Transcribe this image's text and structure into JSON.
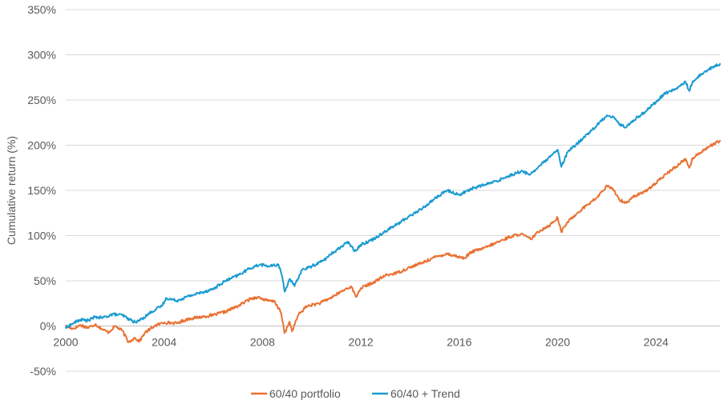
{
  "chart_data": {
    "type": "line",
    "title": "",
    "xlabel": "",
    "ylabel": "Cumulative return (%)",
    "xlim": [
      2000,
      2026.6
    ],
    "ylim": [
      -50,
      350
    ],
    "x_ticks": [
      2000,
      2004,
      2008,
      2012,
      2016,
      2020,
      2024
    ],
    "x_tick_labels": [
      "2000",
      "2004",
      "2008",
      "2012",
      "2016",
      "2020",
      "2024"
    ],
    "y_ticks": [
      -50,
      0,
      50,
      100,
      150,
      200,
      250,
      300,
      350
    ],
    "y_tick_labels": [
      "-50%",
      "0%",
      "50%",
      "100%",
      "150%",
      "200%",
      "250%",
      "300%",
      "350%"
    ],
    "grid": "horizontal",
    "legend_position": "bottom",
    "series": [
      {
        "name": "60/40 portfolio",
        "color": "#E97132",
        "points": [
          [
            2000.0,
            0
          ],
          [
            2000.3,
            -3
          ],
          [
            2000.6,
            1
          ],
          [
            2000.9,
            -2
          ],
          [
            2001.2,
            2
          ],
          [
            2001.5,
            -4
          ],
          [
            2001.75,
            -7
          ],
          [
            2002.0,
            0
          ],
          [
            2002.3,
            -5
          ],
          [
            2002.55,
            -18
          ],
          [
            2002.8,
            -13
          ],
          [
            2003.0,
            -17
          ],
          [
            2003.2,
            -8
          ],
          [
            2003.6,
            0
          ],
          [
            2004.0,
            4
          ],
          [
            2004.5,
            3
          ],
          [
            2005.0,
            8
          ],
          [
            2005.5,
            10
          ],
          [
            2006.0,
            12
          ],
          [
            2006.5,
            16
          ],
          [
            2007.0,
            22
          ],
          [
            2007.5,
            30
          ],
          [
            2007.8,
            32
          ],
          [
            2008.2,
            28
          ],
          [
            2008.5,
            27
          ],
          [
            2008.75,
            15
          ],
          [
            2008.9,
            -8
          ],
          [
            2009.1,
            5
          ],
          [
            2009.2,
            -6
          ],
          [
            2009.45,
            12
          ],
          [
            2009.8,
            22
          ],
          [
            2010.3,
            25
          ],
          [
            2010.7,
            30
          ],
          [
            2011.2,
            38
          ],
          [
            2011.6,
            44
          ],
          [
            2011.8,
            32
          ],
          [
            2012.0,
            42
          ],
          [
            2012.5,
            48
          ],
          [
            2013.0,
            56
          ],
          [
            2013.5,
            59
          ],
          [
            2014.0,
            65
          ],
          [
            2014.5,
            70
          ],
          [
            2015.0,
            76
          ],
          [
            2015.5,
            80
          ],
          [
            2015.9,
            77
          ],
          [
            2016.2,
            75
          ],
          [
            2016.5,
            82
          ],
          [
            2017.0,
            86
          ],
          [
            2017.5,
            92
          ],
          [
            2018.0,
            98
          ],
          [
            2018.5,
            102
          ],
          [
            2018.9,
            96
          ],
          [
            2019.3,
            106
          ],
          [
            2019.7,
            112
          ],
          [
            2020.0,
            120
          ],
          [
            2020.15,
            104
          ],
          [
            2020.4,
            115
          ],
          [
            2020.8,
            125
          ],
          [
            2021.2,
            134
          ],
          [
            2021.6,
            142
          ],
          [
            2022.0,
            155
          ],
          [
            2022.3,
            150
          ],
          [
            2022.5,
            140
          ],
          [
            2022.8,
            136
          ],
          [
            2023.0,
            142
          ],
          [
            2023.5,
            148
          ],
          [
            2024.0,
            158
          ],
          [
            2024.4,
            168
          ],
          [
            2024.8,
            176
          ],
          [
            2025.2,
            185
          ],
          [
            2025.35,
            175
          ],
          [
            2025.5,
            186
          ],
          [
            2026.0,
            196
          ],
          [
            2026.6,
            205
          ]
        ]
      },
      {
        "name": "60/40 + Trend",
        "color": "#1B9BD1",
        "points": [
          [
            2000.0,
            -2
          ],
          [
            2000.3,
            3
          ],
          [
            2000.6,
            7
          ],
          [
            2000.9,
            6
          ],
          [
            2001.2,
            10
          ],
          [
            2001.5,
            9
          ],
          [
            2001.9,
            13
          ],
          [
            2002.3,
            12
          ],
          [
            2002.6,
            7
          ],
          [
            2002.85,
            4
          ],
          [
            2003.1,
            8
          ],
          [
            2003.5,
            16
          ],
          [
            2003.9,
            22
          ],
          [
            2004.1,
            31
          ],
          [
            2004.5,
            28
          ],
          [
            2005.0,
            33
          ],
          [
            2005.5,
            37
          ],
          [
            2006.0,
            41
          ],
          [
            2006.5,
            50
          ],
          [
            2007.0,
            56
          ],
          [
            2007.5,
            64
          ],
          [
            2007.9,
            68
          ],
          [
            2008.3,
            66
          ],
          [
            2008.65,
            68
          ],
          [
            2008.8,
            55
          ],
          [
            2008.9,
            38
          ],
          [
            2009.1,
            52
          ],
          [
            2009.3,
            44
          ],
          [
            2009.6,
            62
          ],
          [
            2010.0,
            66
          ],
          [
            2010.5,
            73
          ],
          [
            2011.0,
            84
          ],
          [
            2011.5,
            93
          ],
          [
            2011.75,
            83
          ],
          [
            2012.0,
            90
          ],
          [
            2012.5,
            96
          ],
          [
            2013.0,
            105
          ],
          [
            2013.5,
            113
          ],
          [
            2014.0,
            122
          ],
          [
            2014.5,
            130
          ],
          [
            2015.0,
            141
          ],
          [
            2015.5,
            150
          ],
          [
            2016.0,
            145
          ],
          [
            2016.5,
            152
          ],
          [
            2017.0,
            156
          ],
          [
            2017.5,
            160
          ],
          [
            2018.0,
            166
          ],
          [
            2018.5,
            171
          ],
          [
            2018.9,
            168
          ],
          [
            2019.3,
            178
          ],
          [
            2019.7,
            187
          ],
          [
            2020.0,
            195
          ],
          [
            2020.15,
            176
          ],
          [
            2020.4,
            192
          ],
          [
            2020.8,
            202
          ],
          [
            2021.2,
            212
          ],
          [
            2021.6,
            222
          ],
          [
            2022.0,
            233
          ],
          [
            2022.3,
            231
          ],
          [
            2022.5,
            223
          ],
          [
            2022.8,
            220
          ],
          [
            2023.1,
            228
          ],
          [
            2023.5,
            236
          ],
          [
            2024.0,
            248
          ],
          [
            2024.4,
            258
          ],
          [
            2024.8,
            262
          ],
          [
            2025.2,
            270
          ],
          [
            2025.35,
            260
          ],
          [
            2025.5,
            271
          ],
          [
            2026.0,
            282
          ],
          [
            2026.6,
            290
          ]
        ]
      }
    ]
  }
}
